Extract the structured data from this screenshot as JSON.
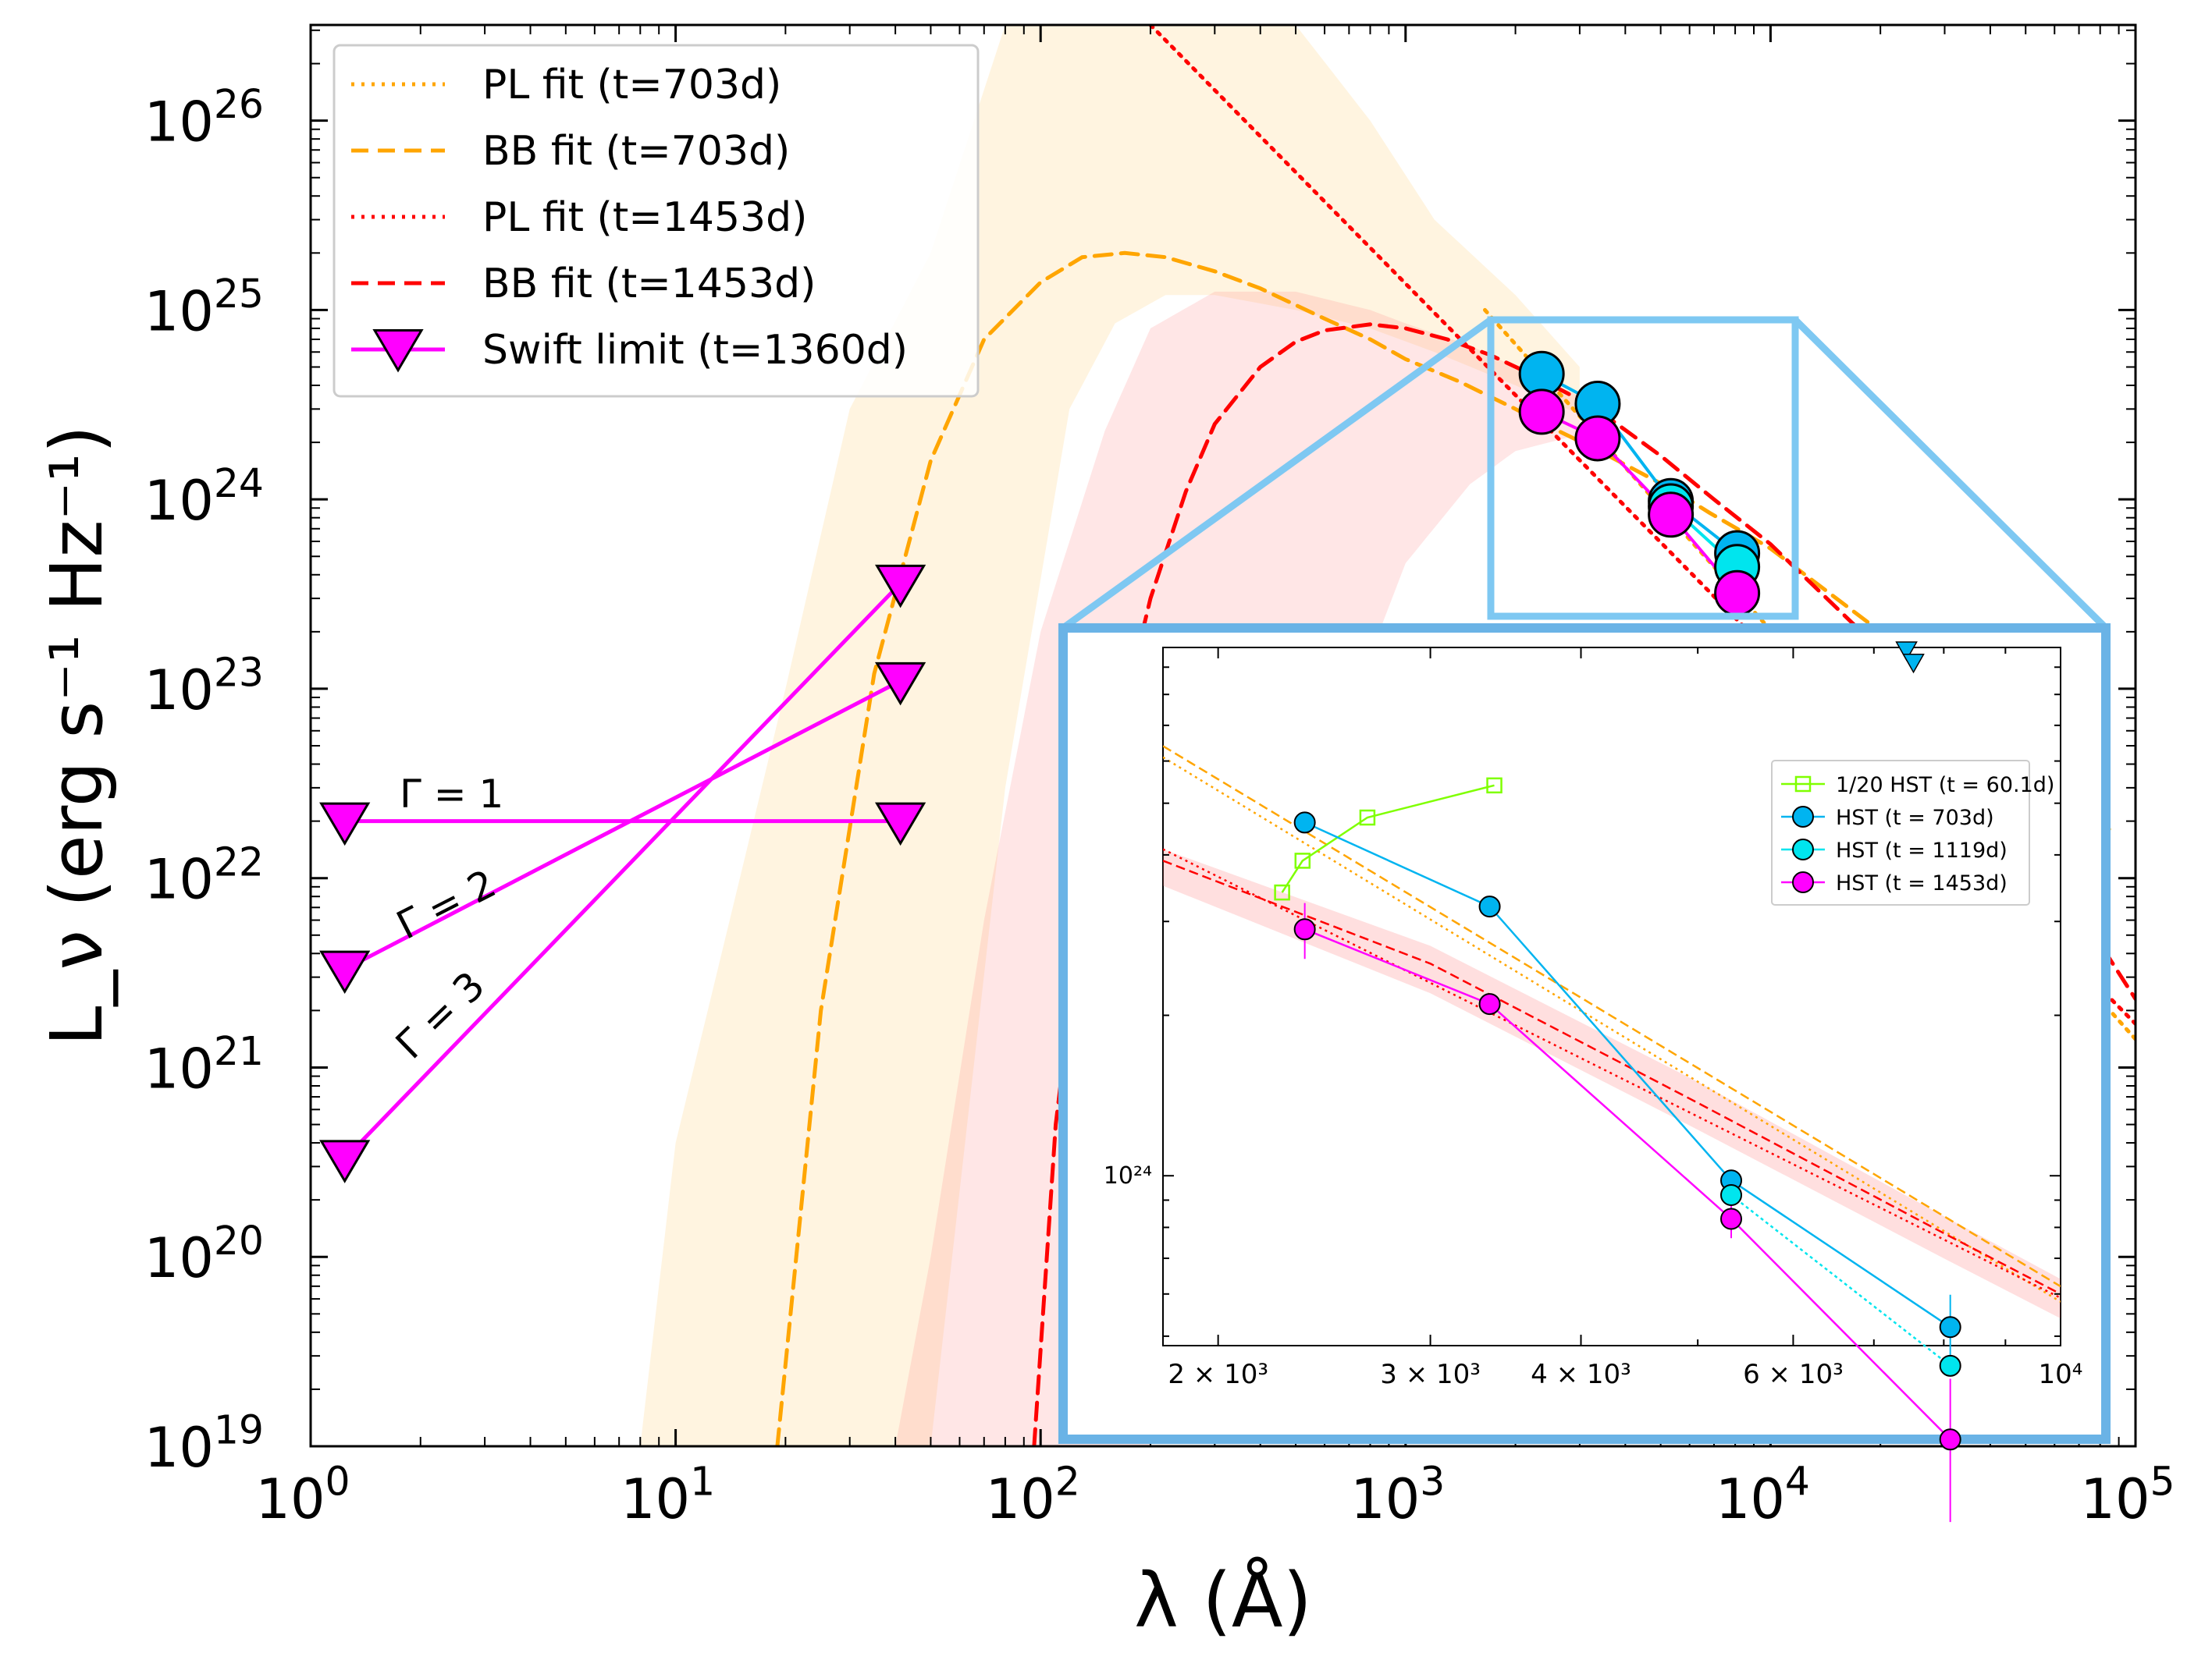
{
  "chart_data": {
    "type": "line",
    "xlabel": "λ (Å)",
    "ylabel": "L_ν (erg s⁻¹ Hz⁻¹)",
    "xscale": "log",
    "yscale": "log",
    "xlim": [
      1,
      100000
    ],
    "ylim": [
      1e+19,
      3.2e+26
    ],
    "xticks": [
      {
        "value": 1,
        "base": "10",
        "exp": "0"
      },
      {
        "value": 10,
        "base": "10",
        "exp": "1"
      },
      {
        "value": 100,
        "base": "10",
        "exp": "2"
      },
      {
        "value": 1000,
        "base": "10",
        "exp": "3"
      },
      {
        "value": 10000,
        "base": "10",
        "exp": "4"
      },
      {
        "value": 100000,
        "base": "10",
        "exp": "5"
      }
    ],
    "yticks": [
      {
        "value": 1e+19,
        "base": "10",
        "exp": "19"
      },
      {
        "value": 1e+20,
        "base": "10",
        "exp": "20"
      },
      {
        "value": 1e+21,
        "base": "10",
        "exp": "21"
      },
      {
        "value": 1e+22,
        "base": "10",
        "exp": "22"
      },
      {
        "value": 1e+23,
        "base": "10",
        "exp": "23"
      },
      {
        "value": 1e+24,
        "base": "10",
        "exp": "24"
      },
      {
        "value": 1e+25,
        "base": "10",
        "exp": "25"
      },
      {
        "value": 1e+26,
        "base": "10",
        "exp": "26"
      }
    ],
    "legend_position": "top-left",
    "series": [
      {
        "name": "PL fit (t=703d)",
        "style": "dotted",
        "color": "#ffa500",
        "x": [
          1650,
          100000
        ],
        "y": [
          1e+25,
          1.41e+21
        ]
      },
      {
        "name": "BB fit (t=703d)",
        "style": "dashed",
        "color": "#ffa500",
        "x": [
          19,
          25,
          35,
          50,
          70,
          100,
          130,
          170,
          220,
          300,
          400,
          600,
          800,
          1000,
          1400,
          2000,
          2400,
          3400,
          5500,
          6800,
          8100,
          10000,
          20000,
          50000,
          85000
        ],
        "y": [
          1e+19,
          2e+21,
          1.2e+23,
          1.6e+24,
          7e+24,
          1.4e+25,
          1.9e+25,
          2e+25,
          1.9e+25,
          1.6e+25,
          1.3e+25,
          9e+24,
          7e+24,
          5.5e+24,
          4.2e+24,
          3e+24,
          2.5e+24,
          1.8e+24,
          1.1e+24,
          8.5e+23,
          7e+23,
          5.5e+23,
          2e+23,
          4e+22,
          1.8e+22
        ]
      },
      {
        "name": "PL fit (t=1453d)",
        "style": "dotted",
        "color": "#ff0000",
        "x": [
          200,
          100000
        ],
        "y": [
          3.2e+26,
          1.7e+21
        ]
      },
      {
        "name": "BB fit (t=1453d)",
        "style": "dashed",
        "color": "#ff0000",
        "x": [
          96,
          110,
          130,
          160,
          200,
          250,
          300,
          400,
          500,
          600,
          800,
          1000,
          1300,
          1700,
          2200,
          2800,
          3500,
          5000,
          7000,
          10000,
          20000,
          40000,
          100000
        ],
        "y": [
          1e+19,
          5e+20,
          7e+21,
          5e+22,
          3e+23,
          1.1e+24,
          2.5e+24,
          5e+24,
          6.8e+24,
          7.8e+24,
          8.4e+24,
          8e+24,
          7e+24,
          5.8e+24,
          4.6e+24,
          3.6e+24,
          2.8e+24,
          1.7e+24,
          1e+24,
          5.8e+23,
          1.6e+23,
          3.6e+22,
          2.3e+21
        ]
      },
      {
        "name": "Swift limit (t=1360d)",
        "style": "solid",
        "marker": "triangle-down",
        "color": "#ff00ff",
        "lines": [
          {
            "label": "Γ = 1",
            "x": [
              1.24,
              41.3
            ],
            "y": [
              2e+22,
              2e+22
            ]
          },
          {
            "label": "Γ = 2",
            "x": [
              1.24,
              41.3
            ],
            "y": [
              3.3e+21,
              1.1e+23
            ]
          },
          {
            "label": "Γ = 3",
            "x": [
              1.24,
              41.3
            ],
            "y": [
              3.3e+20,
              3.6e+23
            ]
          }
        ]
      },
      {
        "name": "HST (t=703d)",
        "style": "solid",
        "marker": "circle",
        "color": "#00b4f0",
        "x": [
          2360,
          3360,
          5330,
          8100
        ],
        "y": [
          4.6e+24,
          3.2e+24,
          9.8e+23,
          5.2e+23
        ]
      },
      {
        "name": "HST (t=1119d)",
        "style": "solid",
        "marker": "circle",
        "color": "#00e5ee",
        "x": [
          5330,
          8100
        ],
        "y": [
          9.2e+23,
          4.4e+23
        ]
      },
      {
        "name": "HST (t=1453d)",
        "style": "solid",
        "marker": "circle",
        "color": "#ff00ff",
        "x": [
          2360,
          3360,
          5330,
          8100
        ],
        "y": [
          2.9e+24,
          2.1e+24,
          8.3e+23,
          3.2e+23
        ]
      }
    ],
    "bands": [
      {
        "name": "BB fit (t=703d) uncertainty",
        "color": "#ffa500",
        "x": [
          8,
          10,
          15,
          20,
          30,
          50,
          80,
          120,
          160,
          220,
          300,
          500,
          800,
          1200,
          2000,
          3000
        ],
        "lo": [
          1e+19,
          1e+19,
          1e+19,
          1e+19,
          1e+19,
          1e+19,
          3e+22,
          3e+24,
          8.5e+24,
          1.2e+25,
          1.2e+25,
          1e+25,
          8e+24,
          6e+24,
          4e+24,
          2.8e+24
        ],
        "hi": [
          1e+19,
          4e+20,
          1e+22,
          1e+23,
          3e+24,
          2e+25,
          3.2e+26,
          3.2e+26,
          3.2e+26,
          3.2e+26,
          3.2e+26,
          3.2e+26,
          1e+26,
          3e+25,
          1.2e+25,
          5e+24
        ]
      },
      {
        "name": "BB fit (t=1453d) uncertainty",
        "color": "#ff8080",
        "x": [
          40,
          50,
          70,
          100,
          150,
          200,
          300,
          500,
          800,
          1000,
          1500,
          2000,
          3000
        ],
        "lo": [
          1e+19,
          1e+19,
          1e+19,
          1e+19,
          1e+19,
          1e+19,
          5e+20,
          3e+22,
          1.5e+23,
          4.6e+23,
          1.2e+24,
          1.8e+24,
          2.2e+24
        ],
        "hi": [
          1e+19,
          1e+20,
          6e+21,
          2e+23,
          2.3e+24,
          8e+24,
          1.25e+25,
          1.25e+25,
          1e+25,
          8.5e+24,
          6.5e+24,
          5e+24,
          3.5e+24
        ]
      }
    ],
    "inset": {
      "xscale": "log",
      "yscale": "log",
      "xlim": [
        1800,
        10000
      ],
      "ylim": [
        4.8e+23,
        9.8e+24
      ],
      "xticks": [
        {
          "value": 2000,
          "label": "2 × 10³"
        },
        {
          "value": 3000,
          "label": "3 × 10³"
        },
        {
          "value": 4000,
          "label": "4 × 10³"
        },
        {
          "value": 6000,
          "label": "6 × 10³"
        },
        {
          "value": 10000,
          "label": "10⁴"
        }
      ],
      "yticks": [
        {
          "value": 1e+24,
          "label": "10²⁴"
        }
      ],
      "legend_position": "right",
      "series": [
        {
          "name": "1/20 HST (t = 60.1d)",
          "marker": "square-open",
          "color": "#7fff00",
          "x": [
            2260,
            2350,
            2660,
            3390
          ],
          "y": [
            3.4e+24,
            3.9e+24,
            4.7e+24,
            5.4e+24
          ]
        },
        {
          "name": "HST (t = 703d)",
          "marker": "circle",
          "color": "#00b4f0",
          "x": [
            2360,
            3360,
            5330,
            8100
          ],
          "y": [
            4.6e+24,
            3.2e+24,
            9.8e+23,
            5.2e+23
          ]
        },
        {
          "name": "HST (t = 1119d)",
          "marker": "circle",
          "color": "#00e5ee",
          "x": [
            5330,
            8100
          ],
          "y": [
            9.2e+23,
            4.4e+23
          ]
        },
        {
          "name": "HST (t = 1453d)",
          "marker": "circle",
          "color": "#ff00ff",
          "x": [
            2360,
            3360,
            5330,
            8100
          ],
          "y": [
            2.9e+24,
            2.1e+24,
            8.3e+23,
            3.2e+23
          ]
        }
      ],
      "upper_limits": {
        "color": "#00b4f0",
        "x": [
          7450,
          7550
        ],
        "y": [
          9.7e+24,
          9.2e+24
        ]
      }
    }
  }
}
